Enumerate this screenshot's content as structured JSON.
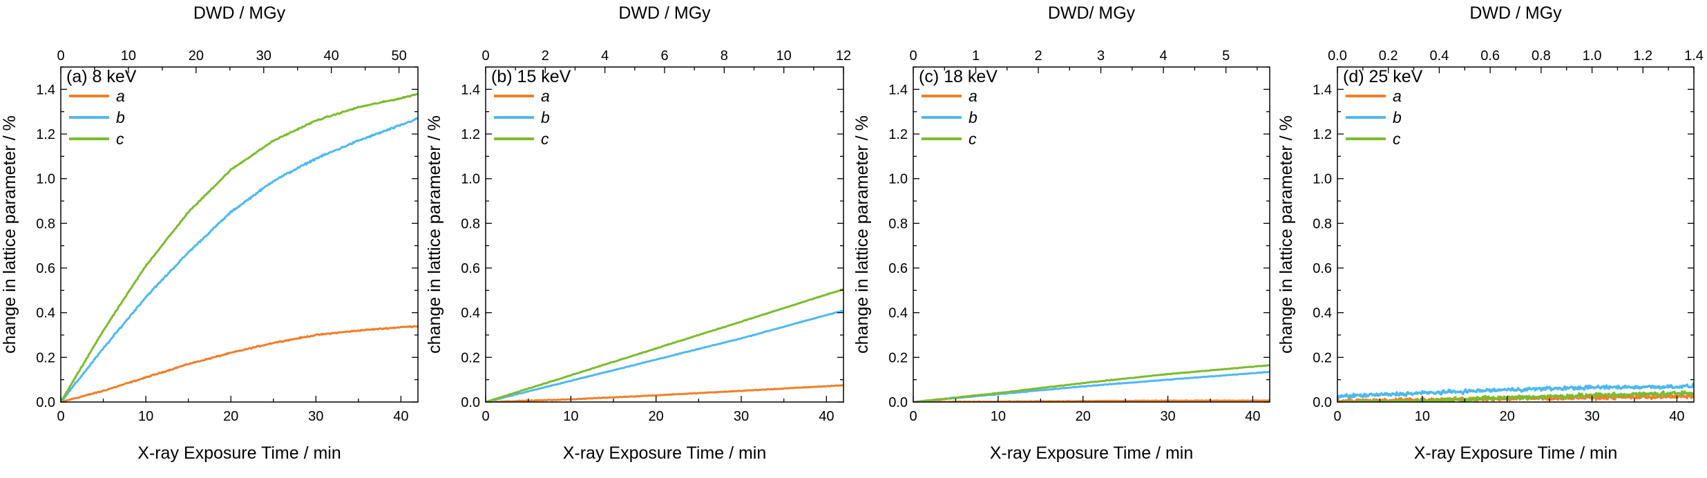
{
  "colors": {
    "a": "#f07f2b",
    "b": "#4fb8f0",
    "c": "#7cbb2e",
    "axis": "#000000"
  },
  "chart_data": [
    {
      "type": "line",
      "panel_label": "(a)",
      "energy": "8 keV",
      "xlabel": "X-ray Exposure Time / min",
      "ylabel": "change in lattice parameter / %",
      "top_xlabel": "DWD / MGy",
      "xlim": [
        0,
        42
      ],
      "ylim": [
        0,
        1.5
      ],
      "x_ticks": [
        "0",
        "10",
        "20",
        "30",
        "40"
      ],
      "x_tick_values": [
        0,
        10,
        20,
        30,
        40
      ],
      "y_ticks": [
        "0.0",
        "0.2",
        "0.4",
        "0.6",
        "0.8",
        "1.0",
        "1.2",
        "1.4"
      ],
      "y_tick_values": [
        0,
        0.2,
        0.4,
        0.6,
        0.8,
        1.0,
        1.2,
        1.4
      ],
      "top_ticks": [
        "0",
        "10",
        "20",
        "30",
        "40",
        "50"
      ],
      "top_tick_values": [
        0,
        10,
        20,
        30,
        40,
        50
      ],
      "top_xlim": [
        0,
        52.8
      ],
      "series": [
        {
          "name": "a",
          "noise": 0.004,
          "x": [
            0,
            5,
            10,
            15,
            20,
            25,
            30,
            35,
            40,
            42
          ],
          "values": [
            0,
            0.05,
            0.11,
            0.17,
            0.22,
            0.265,
            0.3,
            0.32,
            0.335,
            0.34
          ]
        },
        {
          "name": "b",
          "noise": 0.006,
          "x": [
            0,
            5,
            10,
            15,
            20,
            25,
            30,
            35,
            40,
            42
          ],
          "values": [
            0,
            0.24,
            0.47,
            0.67,
            0.85,
            0.99,
            1.09,
            1.17,
            1.24,
            1.27
          ]
        },
        {
          "name": "c",
          "noise": 0.004,
          "x": [
            0,
            5,
            10,
            15,
            20,
            25,
            30,
            35,
            40,
            42
          ],
          "values": [
            0,
            0.32,
            0.61,
            0.85,
            1.04,
            1.17,
            1.26,
            1.32,
            1.36,
            1.38
          ]
        }
      ]
    },
    {
      "type": "line",
      "panel_label": "(b)",
      "energy": "15 keV",
      "xlabel": "X-ray Exposure Time / min",
      "ylabel": "change in lattice parameter / %",
      "top_xlabel": "DWD / MGy",
      "xlim": [
        0,
        42
      ],
      "ylim": [
        0,
        1.5
      ],
      "x_ticks": [
        "0",
        "10",
        "20",
        "30",
        "40"
      ],
      "x_tick_values": [
        0,
        10,
        20,
        30,
        40
      ],
      "y_ticks": [
        "0.0",
        "0.2",
        "0.4",
        "0.6",
        "0.8",
        "1.0",
        "1.2",
        "1.4"
      ],
      "y_tick_values": [
        0,
        0.2,
        0.4,
        0.6,
        0.8,
        1.0,
        1.2,
        1.4
      ],
      "top_ticks": [
        "0",
        "2",
        "4",
        "6",
        "8",
        "10",
        "12"
      ],
      "top_tick_values": [
        0,
        2,
        4,
        6,
        8,
        10,
        12
      ],
      "top_xlim": [
        0,
        12
      ],
      "series": [
        {
          "name": "a",
          "noise": 0.002,
          "x": [
            0,
            10,
            20,
            30,
            42
          ],
          "values": [
            0,
            0.012,
            0.03,
            0.05,
            0.075
          ]
        },
        {
          "name": "b",
          "noise": 0.002,
          "x": [
            0,
            10,
            20,
            30,
            42
          ],
          "values": [
            0,
            0.095,
            0.19,
            0.285,
            0.41
          ]
        },
        {
          "name": "c",
          "noise": 0.002,
          "x": [
            0,
            10,
            20,
            30,
            42
          ],
          "values": [
            0,
            0.12,
            0.24,
            0.36,
            0.505
          ]
        }
      ]
    },
    {
      "type": "line",
      "panel_label": "(c)",
      "energy": "18 keV",
      "xlabel": "X-ray Exposure Time / min",
      "ylabel": "change in lattice parameter / %",
      "top_xlabel": "DWD/ MGy",
      "xlim": [
        0,
        42
      ],
      "ylim": [
        0,
        1.5
      ],
      "x_ticks": [
        "0",
        "10",
        "20",
        "30",
        "40"
      ],
      "x_tick_values": [
        0,
        10,
        20,
        30,
        40
      ],
      "y_ticks": [
        "0.0",
        "0.2",
        "0.4",
        "0.6",
        "0.8",
        "1.0",
        "1.2",
        "1.4"
      ],
      "y_tick_values": [
        0,
        0.2,
        0.4,
        0.6,
        0.8,
        1.0,
        1.2,
        1.4
      ],
      "top_ticks": [
        "0",
        "1",
        "2",
        "3",
        "4",
        "5"
      ],
      "top_tick_values": [
        0,
        1,
        2,
        3,
        4,
        5
      ],
      "top_xlim": [
        0,
        5.7
      ],
      "series": [
        {
          "name": "a",
          "noise": 0.002,
          "x": [
            0,
            10,
            20,
            30,
            42
          ],
          "values": [
            0,
            0.002,
            0.004,
            0.006,
            0.006
          ]
        },
        {
          "name": "b",
          "noise": 0.002,
          "x": [
            0,
            10,
            20,
            30,
            42
          ],
          "values": [
            0,
            0.035,
            0.07,
            0.1,
            0.135
          ]
        },
        {
          "name": "c",
          "noise": 0.002,
          "x": [
            0,
            10,
            20,
            30,
            42
          ],
          "values": [
            0,
            0.04,
            0.085,
            0.125,
            0.165
          ]
        }
      ]
    },
    {
      "type": "line",
      "panel_label": "(d)",
      "energy": "25 keV",
      "xlabel": "X-ray Exposure Time / min",
      "ylabel": "change in lattice parameter / %",
      "top_xlabel": "DWD / MGy",
      "xlim": [
        0,
        42
      ],
      "ylim": [
        0,
        1.5
      ],
      "x_ticks": [
        "0",
        "10",
        "20",
        "30",
        "40"
      ],
      "x_tick_values": [
        0,
        10,
        20,
        30,
        40
      ],
      "y_ticks": [
        "0.0",
        "0.2",
        "0.4",
        "0.6",
        "0.8",
        "1.0",
        "1.2",
        "1.4"
      ],
      "y_tick_values": [
        0,
        0.2,
        0.4,
        0.6,
        0.8,
        1.0,
        1.2,
        1.4
      ],
      "top_ticks": [
        "0.0",
        "0.2",
        "0.4",
        "0.6",
        "0.8",
        "1.0",
        "1.2",
        "1.4"
      ],
      "top_tick_values": [
        0,
        0.2,
        0.4,
        0.6,
        0.8,
        1.0,
        1.2,
        1.4
      ],
      "top_xlim": [
        0,
        1.4
      ],
      "series": [
        {
          "name": "a",
          "noise": 0.012,
          "x": [
            0,
            10,
            20,
            30,
            42
          ],
          "values": [
            0.005,
            0.01,
            0.015,
            0.02,
            0.025
          ]
        },
        {
          "name": "b",
          "noise": 0.012,
          "x": [
            0,
            10,
            20,
            30,
            42
          ],
          "values": [
            0.025,
            0.04,
            0.055,
            0.065,
            0.07
          ]
        },
        {
          "name": "c",
          "noise": 0.014,
          "x": [
            0,
            10,
            20,
            30,
            42
          ],
          "values": [
            -0.005,
            0.005,
            0.02,
            0.03,
            0.04
          ]
        }
      ]
    }
  ]
}
